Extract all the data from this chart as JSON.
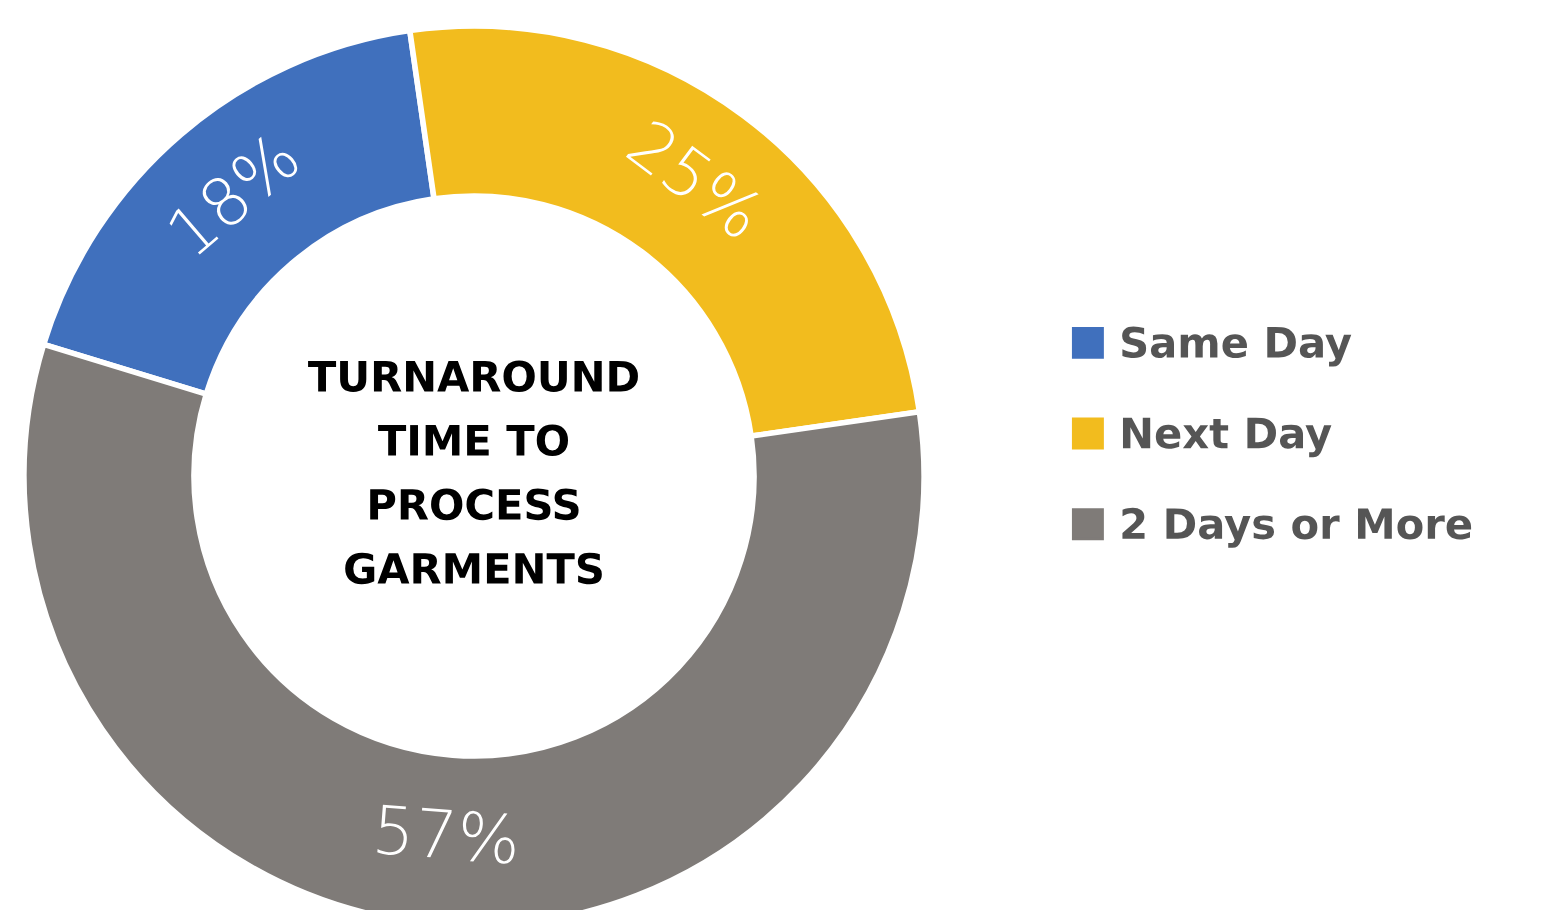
{
  "chart_data": {
    "type": "donut",
    "title": "TURNAROUND\nTIME TO\nPROCESS\nGARMENTS",
    "categories": [
      "Same Day",
      "Next Day",
      "2 Days or More"
    ],
    "values": [
      18,
      25,
      57
    ],
    "colors": [
      "#4070bd",
      "#f2bc1e",
      "#7f7b78"
    ],
    "value_labels": [
      "18%",
      "25%",
      "57%"
    ],
    "legend": "right"
  }
}
